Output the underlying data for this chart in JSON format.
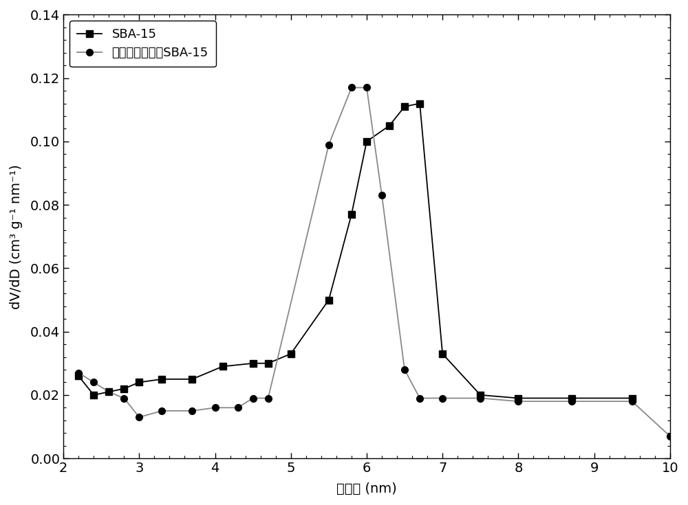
{
  "sba15_x": [
    2.2,
    2.4,
    2.6,
    2.8,
    3.0,
    3.3,
    3.7,
    4.1,
    4.5,
    4.7,
    5.0,
    5.5,
    5.8,
    6.0,
    6.3,
    6.5,
    6.7,
    7.0,
    7.5,
    8.0,
    8.7,
    9.5
  ],
  "sba15_y": [
    0.026,
    0.02,
    0.021,
    0.022,
    0.024,
    0.025,
    0.025,
    0.029,
    0.03,
    0.03,
    0.033,
    0.05,
    0.077,
    0.1,
    0.105,
    0.111,
    0.112,
    0.033,
    0.02,
    0.019,
    0.019,
    0.019
  ],
  "modified_x": [
    2.2,
    2.4,
    2.6,
    2.8,
    3.0,
    3.3,
    3.7,
    4.0,
    4.3,
    4.5,
    4.7,
    5.5,
    5.8,
    6.0,
    6.2,
    6.5,
    6.7,
    7.0,
    7.5,
    8.0,
    8.7,
    9.5,
    10.0
  ],
  "modified_y": [
    0.027,
    0.024,
    0.021,
    0.019,
    0.013,
    0.015,
    0.015,
    0.016,
    0.016,
    0.019,
    0.019,
    0.099,
    0.117,
    0.117,
    0.083,
    0.028,
    0.019,
    0.019,
    0.019,
    0.018,
    0.018,
    0.018,
    0.007
  ],
  "xlabel": "孔　径 (nm)",
  "ylabel": "dV/dD (cm³ g⁻¹ nm⁻¹)",
  "legend1": "SBA-15",
  "legend2": "萍基碗酸基改性SBA-15",
  "xlim": [
    2,
    10
  ],
  "ylim": [
    0.0,
    0.14
  ],
  "yticks": [
    0.0,
    0.02,
    0.04,
    0.06,
    0.08,
    0.1,
    0.12,
    0.14
  ],
  "xticks": [
    2,
    3,
    4,
    5,
    6,
    7,
    8,
    9,
    10
  ],
  "line_color_sba": "#000000",
  "line_color_mod": "#888888",
  "marker_color": "#000000",
  "background_color": "#ffffff",
  "marker_size": 7,
  "line_width": 1.3,
  "tick_label_fontsize": 14,
  "axis_label_fontsize": 14,
  "legend_fontsize": 13
}
